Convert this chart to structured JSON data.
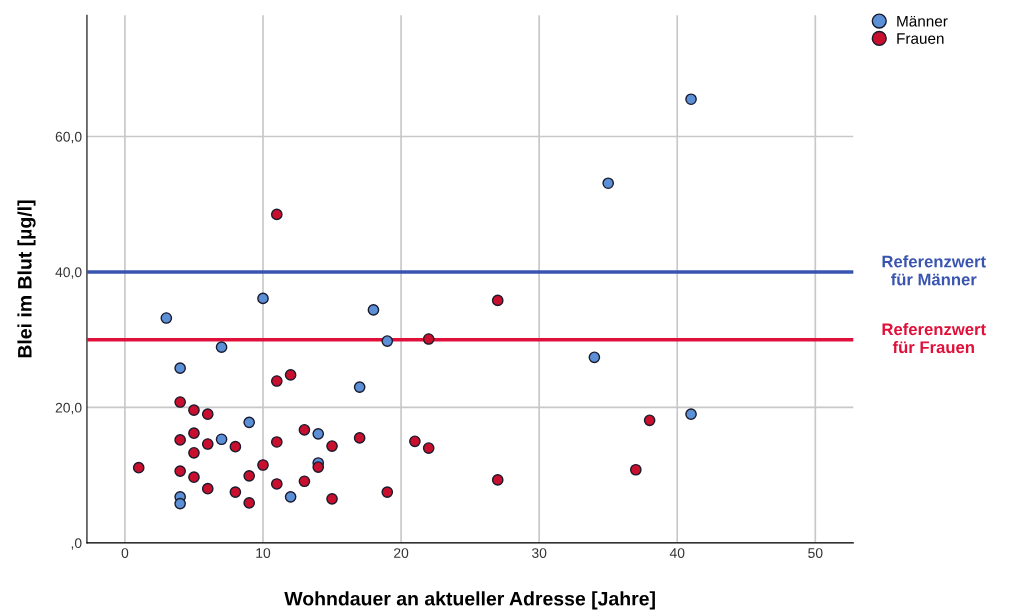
{
  "chart_data": {
    "type": "scatter",
    "xlabel": "Wohndauer an aktueller Adresse [Jahre]",
    "ylabel": "Blei im Blut [µg/l]",
    "xlim": [
      -2.75,
      52.75
    ],
    "xticks": [
      0,
      10,
      20,
      30,
      40,
      50
    ],
    "ylim": [
      0,
      77.9
    ],
    "yticks": [
      {
        "value": 0,
        "label": ",0"
      },
      {
        "value": 20,
        "label": "20,0"
      },
      {
        "value": 40,
        "label": "40,0"
      },
      {
        "value": 60,
        "label": "60,0"
      }
    ],
    "grid": true,
    "legend": "top right",
    "marker": "circle",
    "series": [
      {
        "name": "Männer",
        "color": "#5b8fd6",
        "x": [
          3,
          4,
          4,
          4,
          7,
          7,
          9,
          10,
          12,
          14,
          14,
          17,
          18,
          19,
          34,
          35,
          41,
          41
        ],
        "values": [
          33.2,
          25.8,
          6.8,
          5.8,
          28.9,
          15.3,
          17.8,
          36.1,
          6.8,
          16.1,
          11.8,
          23.0,
          34.4,
          29.8,
          27.4,
          53.1,
          65.5,
          19.0
        ]
      },
      {
        "name": "Frauen",
        "color": "#c8102e",
        "x": [
          1,
          4,
          4,
          4,
          5,
          5,
          5,
          5,
          6,
          6,
          6,
          8,
          8,
          9,
          9,
          10,
          11,
          11,
          11,
          11,
          12,
          13,
          13,
          14,
          15,
          15,
          17,
          19,
          21,
          22,
          22,
          27,
          27,
          37,
          38
        ],
        "values": [
          11.1,
          20.8,
          15.2,
          10.6,
          19.6,
          16.2,
          13.3,
          9.7,
          19.0,
          14.6,
          8.0,
          14.2,
          7.5,
          9.9,
          5.9,
          11.5,
          48.5,
          23.9,
          14.9,
          8.7,
          24.8,
          16.7,
          9.1,
          11.2,
          14.3,
          6.5,
          15.5,
          7.5,
          15.0,
          30.1,
          14.0,
          35.8,
          9.3,
          10.8,
          18.1
        ]
      }
    ],
    "ref_lines": [
      {
        "axis": "y",
        "value": 40,
        "label": "Referenzwert\nfür Männer",
        "color": "#3a55b0",
        "line_style": "solid"
      },
      {
        "axis": "y",
        "value": 30,
        "label": "Referenzwert\nfür Frauen",
        "color": "#e0103a",
        "line_style": "solid"
      }
    ]
  }
}
